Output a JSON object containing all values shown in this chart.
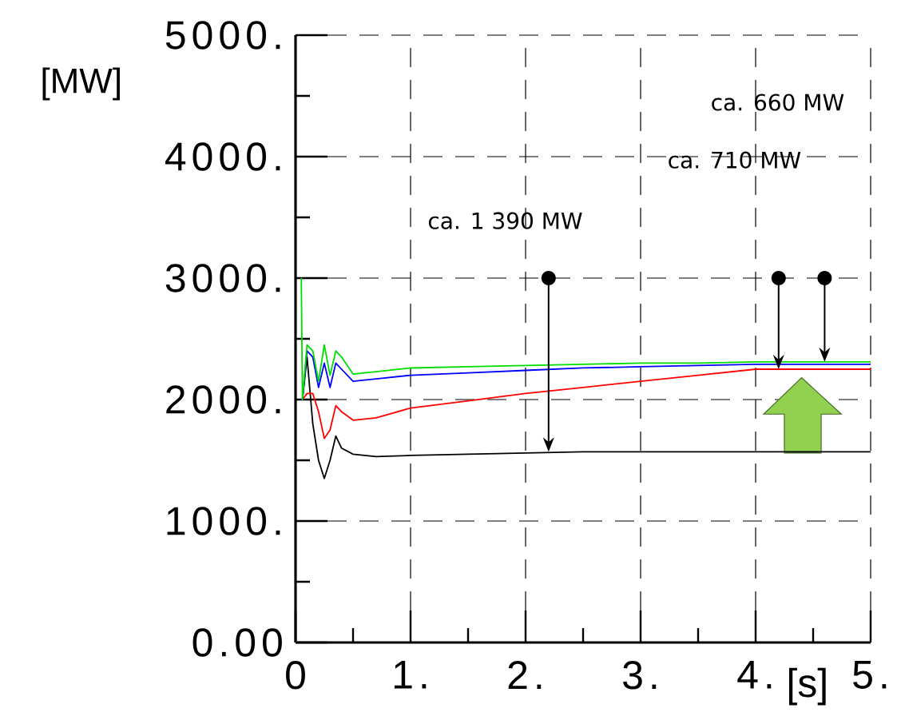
{
  "chart_data": {
    "type": "line",
    "xlabel": "[s]",
    "ylabel": "[MW]",
    "x": [
      0.05,
      0.06,
      0.1,
      0.15,
      0.2,
      0.25,
      0.3,
      0.35,
      0.4,
      0.5,
      0.7,
      1,
      1.5,
      2,
      2.5,
      3,
      3.5,
      4,
      4.5,
      5
    ],
    "series": [
      {
        "color": "#000000",
        "values": [
          2000,
          2000,
          2350,
          1800,
          1500,
          1350,
          1500,
          1700,
          1600,
          1550,
          1530,
          1540,
          1550,
          1560,
          1570,
          1570,
          1570,
          1570,
          1570,
          1570
        ]
      },
      {
        "color": "#ff0000",
        "values": [
          2000,
          2000,
          2050,
          2050,
          1900,
          1680,
          1750,
          1950,
          1900,
          1830,
          1850,
          1930,
          1990,
          2050,
          2100,
          2150,
          2200,
          2250,
          2250,
          2250
        ]
      },
      {
        "color": "#0000ff",
        "values": [
          2000,
          2000,
          2400,
          2350,
          2100,
          2300,
          2100,
          2300,
          2250,
          2150,
          2170,
          2200,
          2220,
          2240,
          2260,
          2270,
          2280,
          2290,
          2290,
          2290
        ]
      },
      {
        "color": "#00dd00",
        "values": [
          3000,
          2000,
          2450,
          2400,
          2150,
          2450,
          2200,
          2400,
          2350,
          2210,
          2230,
          2260,
          2270,
          2280,
          2290,
          2300,
          2300,
          2310,
          2310,
          2310
        ]
      }
    ],
    "xlim": [
      0,
      5
    ],
    "ylim": [
      0,
      5000
    ],
    "xticks": [
      0,
      {
        "value": 1,
        "label": "1."
      },
      {
        "value": 2,
        "label": "2."
      },
      {
        "value": 3,
        "label": "3."
      },
      {
        "value": 4,
        "label": "4."
      },
      {
        "value": 5,
        "label": "5."
      }
    ],
    "yticks": [
      {
        "value": 0,
        "label": "0.00"
      },
      {
        "value": 1000,
        "label": "1000."
      },
      {
        "value": 2000,
        "label": "2000."
      },
      {
        "value": 3000,
        "label": "3000."
      },
      {
        "value": 4000,
        "label": "4000."
      },
      {
        "value": 5000,
        "label": "5000."
      }
    ],
    "grid": true,
    "annotations": [
      "ca. 1 390 MW",
      "ca. 710 MW",
      "ca. 660 MW"
    ]
  }
}
